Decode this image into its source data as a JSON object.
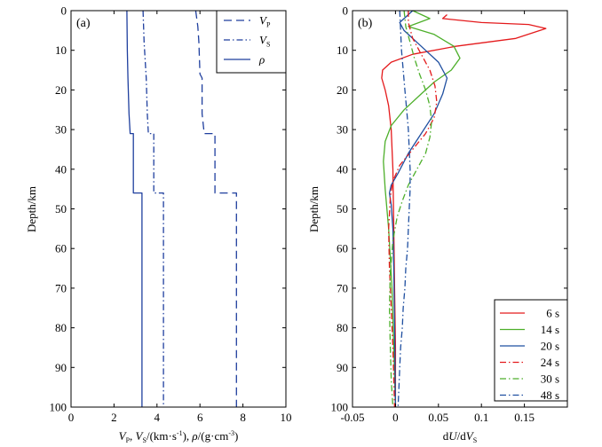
{
  "chart_data": [
    {
      "panel": "a",
      "type": "line",
      "panel_label": "(a)",
      "xlabel": "V_P, V_S/(km·s⁻¹), ρ/(g·cm⁻³)",
      "xlabel_parts": {
        "vp": "V",
        "vp_sub": "P",
        "sep1": ", ",
        "vs": "V",
        "vs_sub": "S",
        "unit1": "/(km·s",
        "exp1": "-1",
        "mid": "), ",
        "rho": "ρ",
        "unit2": "/(g·cm",
        "exp2": "-3",
        "end": ")"
      },
      "ylabel": "Depth/km",
      "xlim": [
        0,
        10
      ],
      "ylim": [
        0,
        100
      ],
      "xticks": [
        "0",
        "2",
        "4",
        "6",
        "8",
        "10"
      ],
      "yticks": [
        "0",
        "10",
        "20",
        "30",
        "40",
        "50",
        "60",
        "70",
        "80",
        "90",
        "100"
      ],
      "legend_position": "top-right",
      "series": [
        {
          "name": "V_P",
          "label_main": "V",
          "label_sub": "P",
          "style": "dashed",
          "color": "#1f3f9e",
          "points": [
            [
              5.8,
              0
            ],
            [
              5.9,
              4
            ],
            [
              5.95,
              8
            ],
            [
              6.0,
              16
            ],
            [
              6.1,
              17
            ],
            [
              6.1,
              26
            ],
            [
              6.2,
              31
            ],
            [
              6.7,
              31
            ],
            [
              6.7,
              46
            ],
            [
              7.7,
              46
            ],
            [
              7.7,
              100
            ]
          ]
        },
        {
          "name": "V_S",
          "label_main": "V",
          "label_sub": "S",
          "style": "dashdot",
          "color": "#1f3f9e",
          "points": [
            [
              3.35,
              0
            ],
            [
              3.4,
              8
            ],
            [
              3.5,
              17
            ],
            [
              3.55,
              26
            ],
            [
              3.6,
              31
            ],
            [
              3.85,
              31
            ],
            [
              3.85,
              46
            ],
            [
              4.3,
              46
            ],
            [
              4.3,
              100
            ]
          ]
        },
        {
          "name": "ρ",
          "label_main": "ρ",
          "label_sub": "",
          "style": "solid",
          "color": "#1f3f9e",
          "points": [
            [
              2.6,
              0
            ],
            [
              2.62,
              10
            ],
            [
              2.65,
              17
            ],
            [
              2.7,
              26
            ],
            [
              2.75,
              31
            ],
            [
              2.9,
              31
            ],
            [
              2.9,
              46
            ],
            [
              3.3,
              46
            ],
            [
              3.3,
              100
            ]
          ]
        }
      ]
    },
    {
      "panel": "b",
      "type": "line",
      "panel_label": "(b)",
      "xlabel": "dU/dV_S",
      "xlabel_parts": {
        "a": "d",
        "b": "U",
        "c": "/d",
        "d": "V",
        "sub": "S"
      },
      "ylabel": "Depth/km",
      "xlim": [
        -0.05,
        0.2
      ],
      "ylim": [
        0,
        100
      ],
      "xticks": [
        "-0.05",
        "0",
        "0.05",
        "0.1",
        "0.15"
      ],
      "xtick_values": [
        -0.05,
        0,
        0.05,
        0.1,
        0.15
      ],
      "yticks": [
        "0",
        "10",
        "20",
        "30",
        "40",
        "50",
        "60",
        "70",
        "80",
        "90",
        "100"
      ],
      "legend_position": "bottom-right",
      "series": [
        {
          "name": "6 s",
          "style": "solid",
          "color": "#e41a1c",
          "points": [
            [
              0.06,
              1
            ],
            [
              0.055,
              2
            ],
            [
              0.1,
              3
            ],
            [
              0.155,
              3.5
            ],
            [
              0.175,
              4.5
            ],
            [
              0.14,
              7
            ],
            [
              0.07,
              9
            ],
            [
              0.02,
              11
            ],
            [
              -0.005,
              13
            ],
            [
              -0.015,
              15
            ],
            [
              -0.016,
              17
            ],
            [
              -0.012,
              20
            ],
            [
              -0.008,
              24
            ],
            [
              -0.005,
              30
            ],
            [
              -0.003,
              40
            ],
            [
              -0.002,
              55
            ],
            [
              -0.001,
              70
            ],
            [
              0,
              85
            ],
            [
              0,
              100
            ]
          ]
        },
        {
          "name": "14 s",
          "style": "solid",
          "color": "#4daf2a",
          "points": [
            [
              0.02,
              0
            ],
            [
              0.04,
              2
            ],
            [
              0.015,
              4
            ],
            [
              0.045,
              6
            ],
            [
              0.068,
              9
            ],
            [
              0.075,
              12
            ],
            [
              0.065,
              15
            ],
            [
              0.045,
              18
            ],
            [
              0.03,
              21
            ],
            [
              0.01,
              25
            ],
            [
              -0.005,
              29
            ],
            [
              -0.012,
              33
            ],
            [
              -0.014,
              38
            ],
            [
              -0.012,
              45
            ],
            [
              -0.008,
              55
            ],
            [
              -0.004,
              70
            ],
            [
              -0.002,
              85
            ],
            [
              0,
              100
            ]
          ]
        },
        {
          "name": "20 s",
          "style": "solid",
          "color": "#1f4fa0",
          "points": [
            [
              0.02,
              0
            ],
            [
              0.005,
              3
            ],
            [
              0.01,
              5
            ],
            [
              0.03,
              9
            ],
            [
              0.05,
              13
            ],
            [
              0.06,
              17
            ],
            [
              0.055,
              21
            ],
            [
              0.045,
              26
            ],
            [
              0.03,
              31
            ],
            [
              0.015,
              36
            ],
            [
              0.003,
              41
            ],
            [
              -0.005,
              44
            ],
            [
              -0.007,
              46
            ],
            [
              -0.005,
              49
            ],
            [
              -0.003,
              55
            ],
            [
              -0.002,
              65
            ],
            [
              -0.001,
              80
            ],
            [
              0,
              100
            ]
          ]
        },
        {
          "name": "24 s",
          "style": "dashdot",
          "color": "#e41a1c",
          "points": [
            [
              0.015,
              0
            ],
            [
              0.015,
              3
            ],
            [
              0.02,
              7
            ],
            [
              0.03,
              11
            ],
            [
              0.04,
              15
            ],
            [
              0.046,
              19
            ],
            [
              0.048,
              23
            ],
            [
              0.045,
              27
            ],
            [
              0.035,
              31
            ],
            [
              0.02,
              35
            ],
            [
              0.005,
              39
            ],
            [
              -0.003,
              43
            ],
            [
              -0.006,
              47
            ],
            [
              -0.008,
              55
            ],
            [
              -0.007,
              65
            ],
            [
              -0.005,
              75
            ],
            [
              -0.003,
              85
            ],
            [
              -0.001,
              100
            ]
          ]
        },
        {
          "name": "30 s",
          "style": "dashdot",
          "color": "#4daf2a",
          "points": [
            [
              0.01,
              0
            ],
            [
              0.012,
              4
            ],
            [
              0.017,
              8
            ],
            [
              0.022,
              12
            ],
            [
              0.028,
              16
            ],
            [
              0.035,
              20
            ],
            [
              0.04,
              24
            ],
            [
              0.042,
              28
            ],
            [
              0.04,
              32
            ],
            [
              0.035,
              36
            ],
            [
              0.025,
              40
            ],
            [
              0.015,
              44
            ],
            [
              0.008,
              48
            ],
            [
              0.002,
              52
            ],
            [
              -0.003,
              58
            ],
            [
              -0.006,
              66
            ],
            [
              -0.007,
              75
            ],
            [
              -0.006,
              85
            ],
            [
              -0.005,
              93
            ],
            [
              -0.003,
              100
            ]
          ]
        },
        {
          "name": "48 s",
          "style": "dashdot",
          "color": "#1f4fa0",
          "points": [
            [
              0.005,
              0
            ],
            [
              0.006,
              5
            ],
            [
              0.007,
              10
            ],
            [
              0.009,
              15
            ],
            [
              0.011,
              20
            ],
            [
              0.013,
              25
            ],
            [
              0.015,
              30
            ],
            [
              0.016,
              35
            ],
            [
              0.017,
              40
            ],
            [
              0.017,
              45
            ],
            [
              0.016,
              50
            ],
            [
              0.015,
              55
            ],
            [
              0.014,
              60
            ],
            [
              0.012,
              65
            ],
            [
              0.011,
              70
            ],
            [
              0.009,
              75
            ],
            [
              0.008,
              80
            ],
            [
              0.006,
              85
            ],
            [
              0.005,
              90
            ],
            [
              0.004,
              95
            ],
            [
              0.003,
              100
            ]
          ]
        }
      ]
    }
  ]
}
